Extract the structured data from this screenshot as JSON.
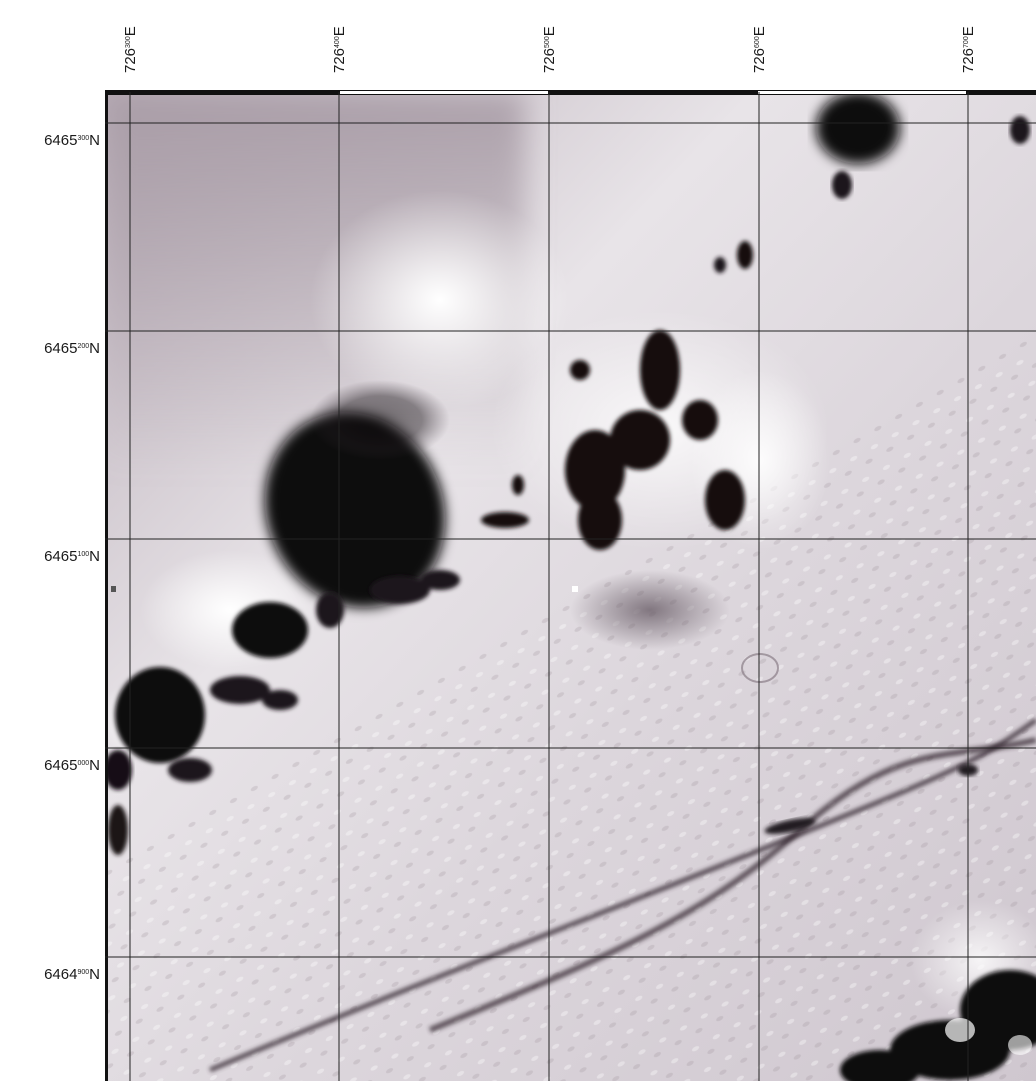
{
  "map": {
    "grid_color": "#222222",
    "background_color": "#d9d2d8",
    "eastings": [
      {
        "prefix": "726",
        "sup": "300",
        "suffix": "E"
      },
      {
        "prefix": "726",
        "sup": "400",
        "suffix": "E"
      },
      {
        "prefix": "726",
        "sup": "500",
        "suffix": "E"
      },
      {
        "prefix": "726",
        "sup": "600",
        "suffix": "E"
      },
      {
        "prefix": "726",
        "sup": "700",
        "suffix": "E"
      }
    ],
    "northings": [
      {
        "prefix": "6465",
        "sup": "300",
        "suffix": "N"
      },
      {
        "prefix": "6465",
        "sup": "200",
        "suffix": "N"
      },
      {
        "prefix": "6465",
        "sup": "100",
        "suffix": "N"
      },
      {
        "prefix": "6465",
        "sup": "000",
        "suffix": "N"
      },
      {
        "prefix": "6464",
        "sup": "900",
        "suffix": "N"
      }
    ]
  }
}
